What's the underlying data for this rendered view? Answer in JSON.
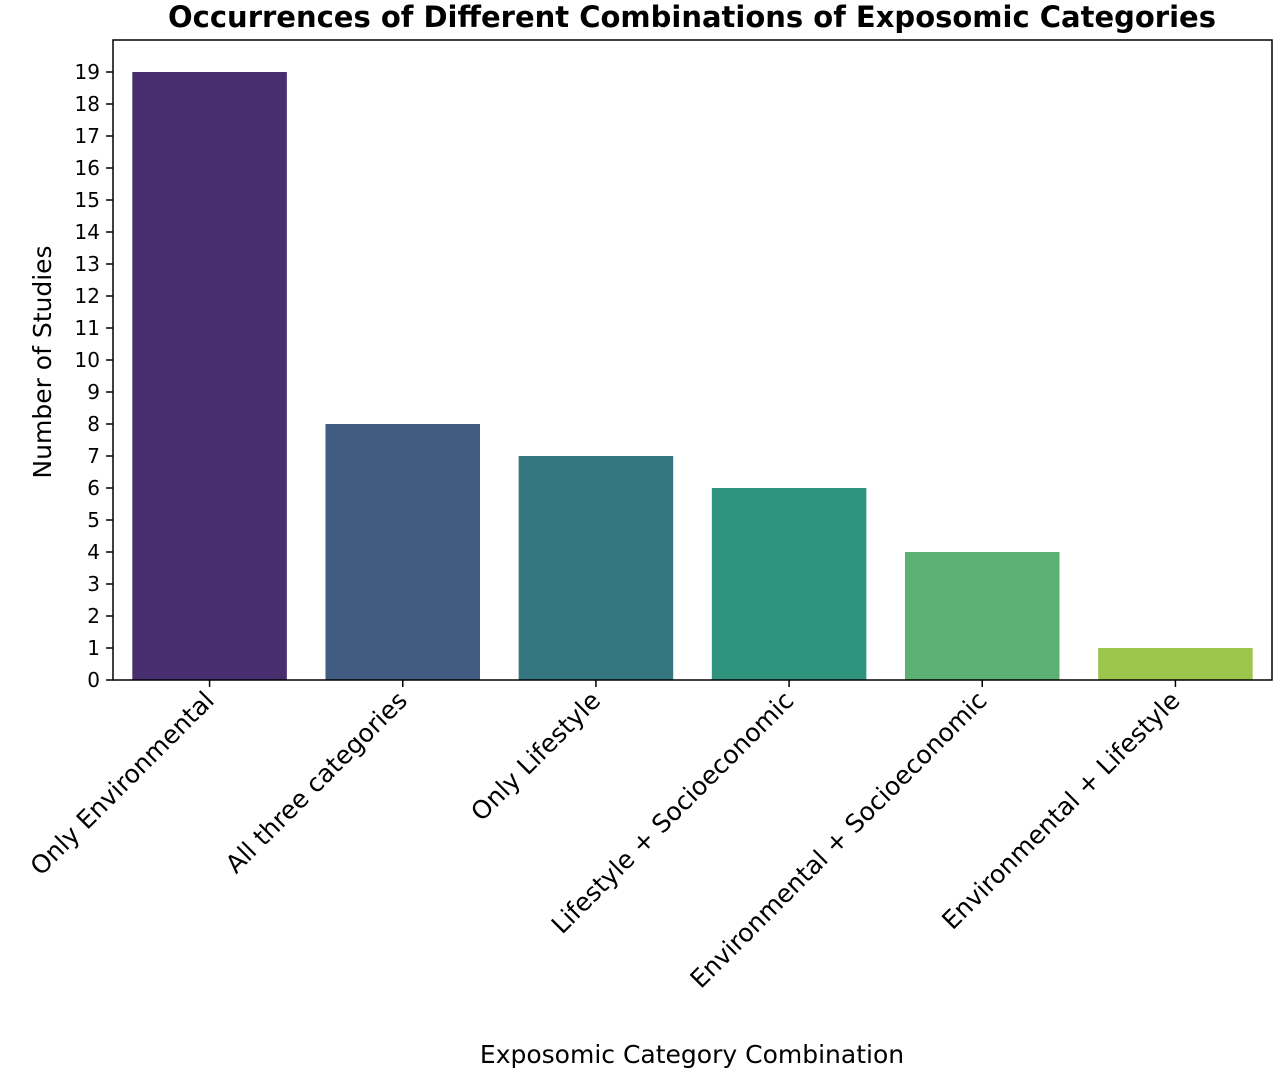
{
  "chart_data": {
    "type": "bar",
    "title": "Occurrences of Different Combinations of Exposomic Categories",
    "xlabel": "Exposomic Category Combination",
    "ylabel": "Number of Studies",
    "categories": [
      "Only Environmental",
      "All three categories",
      "Only Lifestyle",
      "Lifestyle + Socioeconomic",
      "Environmental + Socioeconomic",
      "Environmental + Lifestyle"
    ],
    "values": [
      19,
      8,
      7,
      6,
      4,
      1
    ],
    "colors": [
      "#482e6f",
      "#405d81",
      "#347680",
      "#30937d",
      "#5ab172",
      "#9bc54c"
    ],
    "ylim": [
      0,
      19
    ],
    "yticks": [
      "0",
      "1",
      "2",
      "3",
      "4",
      "5",
      "6",
      "7",
      "8",
      "9",
      "10",
      "11",
      "12",
      "13",
      "14",
      "15",
      "16",
      "17",
      "18",
      "19"
    ],
    "grid": false,
    "legend": "none"
  }
}
